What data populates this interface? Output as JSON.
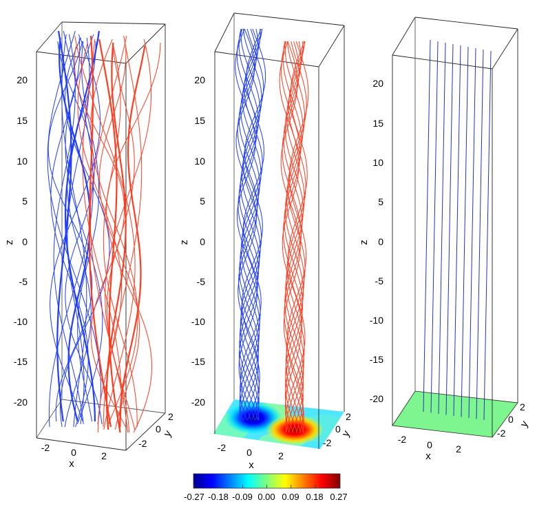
{
  "chart_data": [
    {
      "type": "line3d",
      "panel": "left",
      "xlabel": "x",
      "ylabel": "y",
      "zlabel": "z",
      "x_ticks": [
        "-2",
        "0",
        "2"
      ],
      "y_ticks": [
        "-2",
        "0",
        "2"
      ],
      "z_ticks": [
        "20",
        "15",
        "10",
        "5",
        "0",
        "-5",
        "-10",
        "-15",
        "-20"
      ],
      "zlim": [
        -24,
        24
      ],
      "series": [
        {
          "color": "#1f3cff",
          "x_range": [
            -2.6,
            1.2
          ],
          "y_range": [
            -2.5,
            2.5
          ],
          "line_count": 16
        },
        {
          "color": "#ff3b1f",
          "x_range": [
            -1.5,
            3.2
          ],
          "y_range": [
            -2.5,
            2.5
          ],
          "line_count": 16
        }
      ]
    },
    {
      "type": "line3d",
      "panel": "middle",
      "xlabel": "x",
      "ylabel": "y",
      "zlabel": "z",
      "x_ticks": [
        "-2",
        "0",
        "2"
      ],
      "y_ticks": [
        "-2",
        "0",
        "2"
      ],
      "z_ticks": [
        "20",
        "15",
        "10",
        "5",
        "0",
        "-5",
        "-10",
        "-15",
        "-20"
      ],
      "zlim": [
        -24,
        24
      ],
      "series": [
        {
          "color": "#1f3cff",
          "x_center": -0.4,
          "line_count": 14
        },
        {
          "color": "#ff3b1f",
          "x_center": 2.3,
          "line_count": 14
        }
      ],
      "floor_field": "heatmap (jet colormap): blue minimum near x=-0.5, red maximum near x=2.3"
    },
    {
      "type": "line3d",
      "panel": "right",
      "xlabel": "x",
      "ylabel": "y",
      "zlabel": "z",
      "x_ticks": [
        "-2",
        "0",
        "2"
      ],
      "y_ticks": [
        "-2",
        "0",
        "2"
      ],
      "z_ticks": [
        "20",
        "15",
        "10",
        "5",
        "0",
        "-5",
        "-10",
        "-15",
        "-20"
      ],
      "zlim": [
        -24,
        24
      ],
      "series": [
        {
          "color": "#2233bb",
          "style": "straight vertical",
          "x_values": [
            -2.4,
            -1.8,
            -1.2,
            -0.6,
            0.0,
            0.6,
            1.2,
            1.8,
            2.4
          ]
        }
      ],
      "floor_color": "#7ef58e"
    }
  ],
  "colorbar": {
    "tick_labels": [
      "-0.27",
      "-0.18",
      "-0.09",
      "0.00",
      "0.09",
      "0.18",
      "0.27"
    ],
    "range": [
      -0.27,
      0.27
    ],
    "colormap": "jet"
  }
}
